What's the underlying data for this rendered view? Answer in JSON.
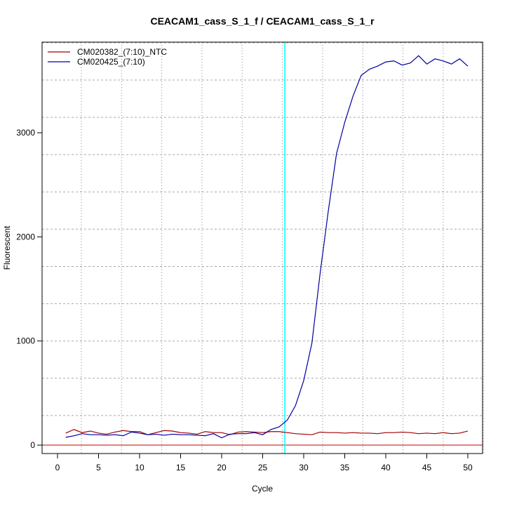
{
  "chart_data": {
    "type": "line",
    "title": "CEACAM1_cass_S_1_f / CEACAM1_cass_S_1_r",
    "xlabel": "Cycle",
    "ylabel": "Fluorescent",
    "xlim": [
      -2,
      52
    ],
    "ylim": [
      -80,
      3900
    ],
    "xticks": [
      0,
      5,
      10,
      15,
      20,
      25,
      30,
      35,
      40,
      45,
      50
    ],
    "yticks": [
      0,
      1000,
      2000,
      3000
    ],
    "grid": true,
    "legend_position": "top-left",
    "threshold_cycle_line": 27.7,
    "threshold_cycle_color": "#00ffff",
    "baseline_value": 0,
    "baseline_color": "#cc0000",
    "x": [
      1,
      2,
      3,
      4,
      5,
      6,
      7,
      8,
      9,
      10,
      11,
      12,
      13,
      14,
      15,
      16,
      17,
      18,
      19,
      20,
      21,
      22,
      23,
      24,
      25,
      26,
      27,
      28,
      29,
      30,
      31,
      32,
      33,
      34,
      35,
      36,
      37,
      38,
      39,
      40,
      41,
      42,
      43,
      44,
      45,
      46,
      47,
      48,
      49,
      50
    ],
    "series": [
      {
        "name": "CM020382_(7:10)_NTC",
        "color": "#a00000",
        "values": [
          115,
          150,
          120,
          135,
          115,
          105,
          125,
          140,
          130,
          130,
          100,
          120,
          140,
          135,
          120,
          115,
          105,
          130,
          120,
          120,
          100,
          125,
          130,
          125,
          120,
          130,
          130,
          120,
          110,
          105,
          100,
          125,
          120,
          120,
          115,
          120,
          115,
          115,
          110,
          120,
          120,
          125,
          120,
          110,
          115,
          110,
          120,
          110,
          115,
          135
        ]
      },
      {
        "name": "CM020425_(7:10)",
        "color": "#0000a0",
        "values": [
          75,
          90,
          110,
          100,
          100,
          95,
          100,
          90,
          125,
          115,
          100,
          105,
          95,
          105,
          100,
          100,
          95,
          90,
          110,
          70,
          105,
          110,
          110,
          120,
          100,
          150,
          175,
          240,
          380,
          620,
          980,
          1650,
          2250,
          2800,
          3100,
          3350,
          3550,
          3610,
          3640,
          3680,
          3690,
          3650,
          3670,
          3740,
          3660,
          3710,
          3690,
          3660,
          3710,
          3640
        ]
      }
    ]
  }
}
